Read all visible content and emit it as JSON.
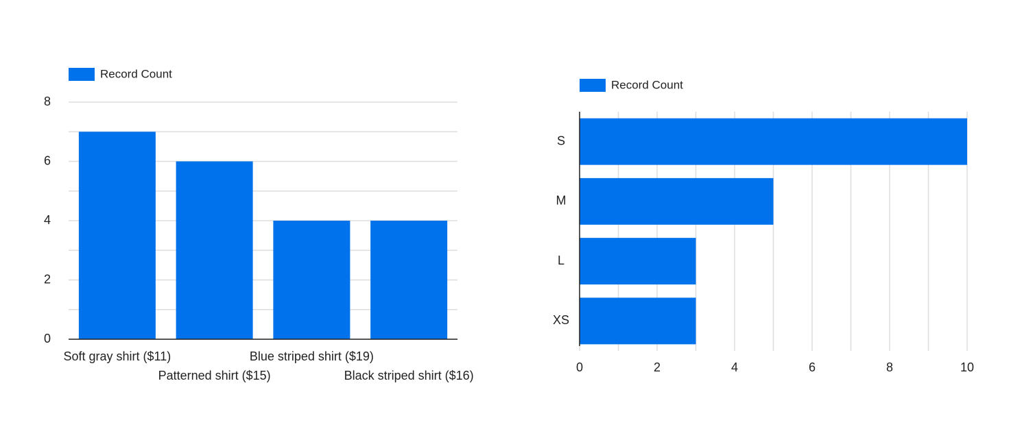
{
  "chart_data": [
    {
      "type": "bar",
      "orientation": "vertical",
      "color": "#0073ec",
      "categories": [
        "Soft gray shirt ($11)",
        "Patterned shirt ($15)",
        "Blue striped shirt ($19)",
        "Black striped shirt ($16)"
      ],
      "series": [
        {
          "name": "Record Count",
          "color": "#0073ec",
          "values": [
            7,
            6,
            4,
            4
          ]
        }
      ],
      "ylim": [
        0,
        8
      ],
      "yticks": [
        0,
        2,
        4,
        6,
        8
      ],
      "minor_ticks": [
        1,
        3,
        5,
        7
      ],
      "grid": true
    },
    {
      "type": "bar",
      "orientation": "horizontal",
      "color": "#0073ec",
      "categories": [
        "S",
        "M",
        "L",
        "XS"
      ],
      "series": [
        {
          "name": "Record Count",
          "color": "#0073ec",
          "values": [
            10,
            5,
            3,
            3
          ]
        }
      ],
      "xlim": [
        0,
        10
      ],
      "xticks": [
        0,
        2,
        4,
        6,
        8,
        10
      ],
      "minor_ticks": [
        1,
        3,
        5,
        7,
        9
      ],
      "grid": true
    }
  ]
}
